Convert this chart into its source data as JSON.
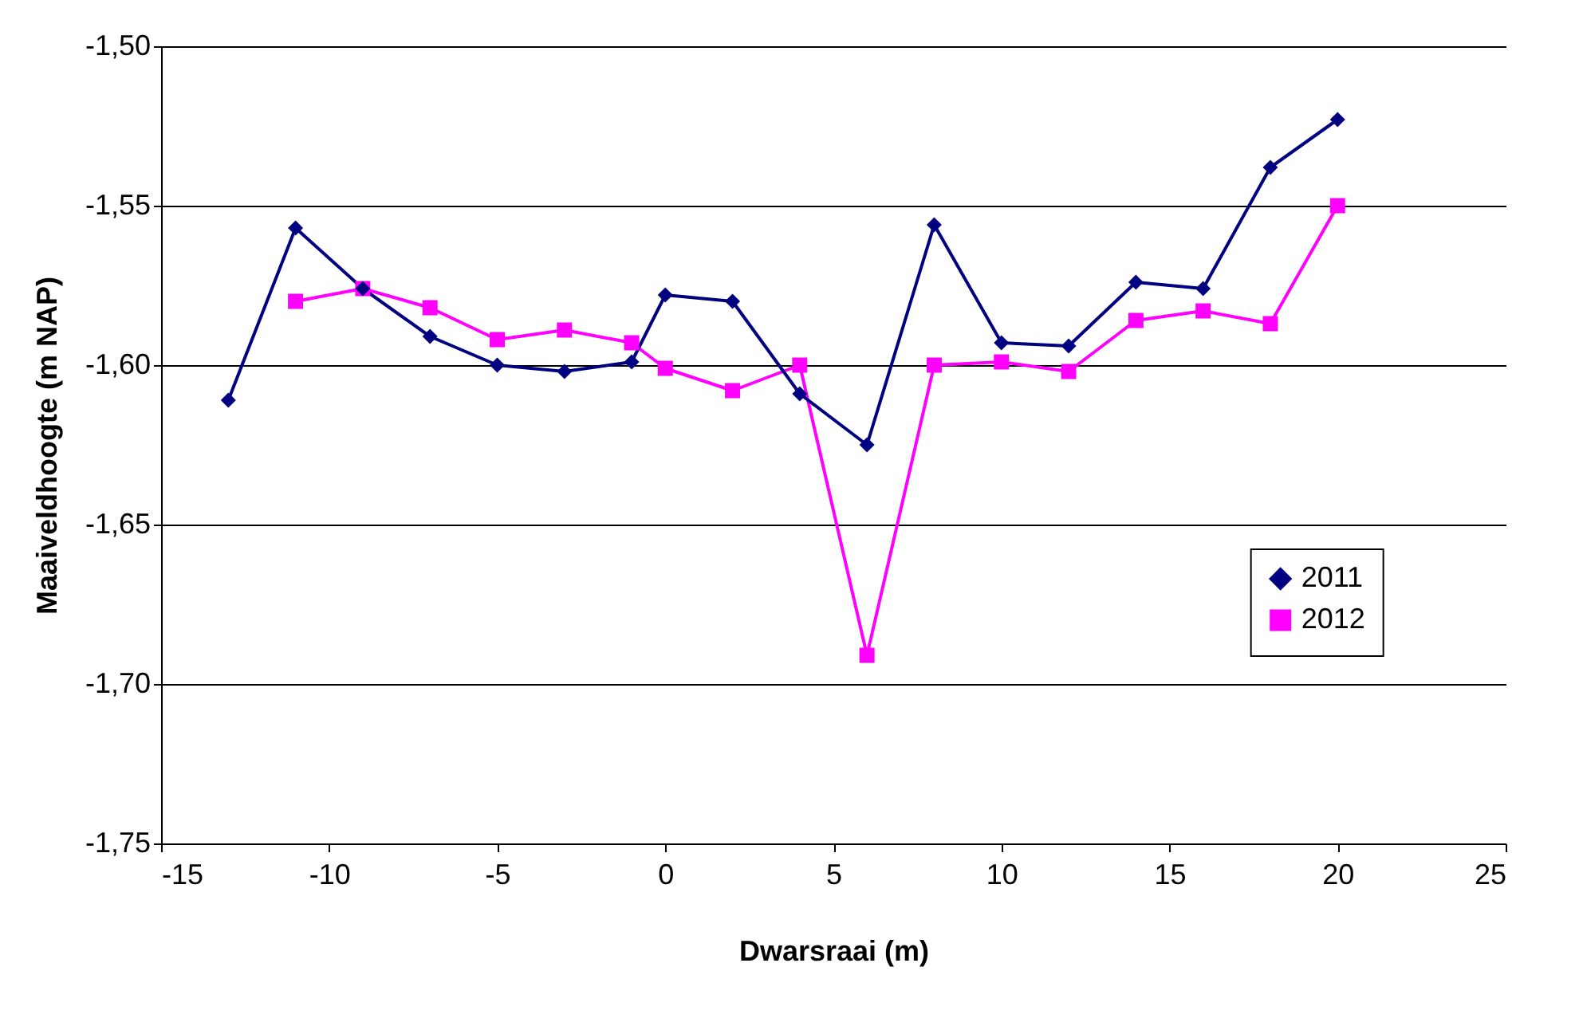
{
  "chart_data": {
    "type": "line",
    "xlabel": "Dwarsraai (m)",
    "ylabel": "Maaiveldhoogte (m NAP)",
    "x": [
      -13,
      -11,
      -9,
      -7,
      -5,
      -3,
      -1,
      0,
      2,
      4,
      6,
      8,
      10,
      12,
      14,
      16,
      18,
      20
    ],
    "series": [
      {
        "name": "2011",
        "color": "#000080",
        "marker": "diamond",
        "values": [
          -1.611,
          -1.557,
          -1.576,
          -1.591,
          -1.6,
          -1.602,
          -1.599,
          -1.578,
          -1.58,
          -1.609,
          -1.625,
          -1.556,
          -1.593,
          -1.594,
          -1.574,
          -1.576,
          -1.538,
          -1.523
        ]
      },
      {
        "name": "2012",
        "color": "#ff00ff",
        "marker": "square",
        "values": [
          null,
          -1.58,
          -1.576,
          -1.582,
          -1.592,
          -1.589,
          -1.593,
          -1.601,
          -1.608,
          -1.6,
          -1.691,
          -1.6,
          -1.599,
          -1.602,
          -1.586,
          -1.583,
          -1.587,
          -1.55
        ]
      }
    ],
    "xlim": [
      -15,
      25
    ],
    "xticks": [
      -15,
      -10,
      -5,
      0,
      5,
      10,
      15,
      20,
      25
    ],
    "ylim": [
      -1.75,
      -1.5
    ],
    "yticks": [
      {
        "value": -1.75,
        "label": "-1,75"
      },
      {
        "value": -1.7,
        "label": "-1,70"
      },
      {
        "value": -1.65,
        "label": "-1,65"
      },
      {
        "value": -1.6,
        "label": "-1,60"
      },
      {
        "value": -1.55,
        "label": "-1,55"
      },
      {
        "value": -1.5,
        "label": "-1,50"
      }
    ],
    "grid": "y",
    "legend": "right"
  }
}
